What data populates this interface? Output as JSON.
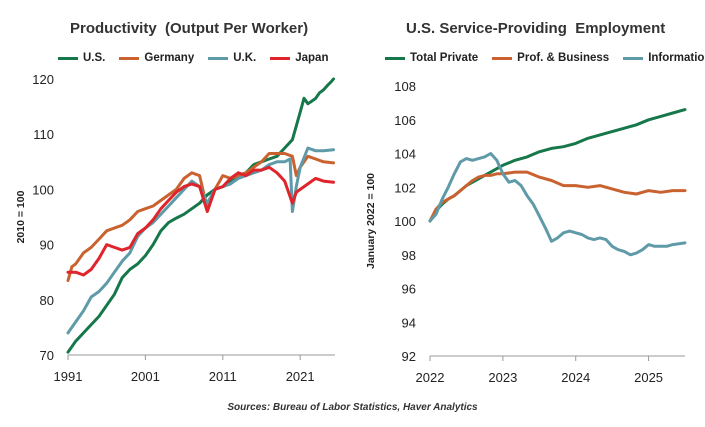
{
  "chart_data": [
    {
      "type": "line",
      "title": "Productivity  (Output Per Worker)",
      "ylabel": "2010 = 100",
      "xlabel": "",
      "ylim": [
        70,
        120
      ],
      "xlim": [
        1991,
        2025.5
      ],
      "yticks": [
        70,
        80,
        90,
        100,
        110,
        120
      ],
      "xticks": [
        1991,
        2001,
        2011,
        2021
      ],
      "grid": false,
      "legend_position": "top",
      "series": [
        {
          "name": "U.S.",
          "color": "#16784a",
          "x": [
            1991,
            1992,
            1993,
            1994,
            1995,
            1996,
            1997,
            1998,
            1999,
            2000,
            2001,
            2002,
            2003,
            2004,
            2005,
            2006,
            2007,
            2008,
            2009,
            2010,
            2011,
            2012,
            2013,
            2014,
            2015,
            2016,
            2017,
            2018,
            2019,
            2020,
            2020.5,
            2021,
            2021.5,
            2022,
            2022.5,
            2023,
            2023.5,
            2024,
            2024.5,
            2025,
            2025.3
          ],
          "y": [
            70.5,
            72.5,
            74,
            75.5,
            77,
            79,
            81,
            84,
            85.5,
            86.5,
            88,
            90,
            92.5,
            94,
            94.8,
            95.5,
            96.5,
            97.5,
            99,
            100,
            100.5,
            101.5,
            102.5,
            103,
            104.5,
            105,
            105.5,
            106,
            107.5,
            109,
            111.5,
            114,
            116.5,
            115.5,
            116,
            116.5,
            117.5,
            118,
            118.8,
            119.5,
            120
          ]
        },
        {
          "name": "Germany",
          "color": "#c9622f",
          "x": [
            1991,
            1991.5,
            1992,
            1993,
            1994,
            1995,
            1996,
            1997,
            1998,
            1999,
            2000,
            2001,
            2002,
            2003,
            2004,
            2005,
            2006,
            2007,
            2008,
            2009,
            2010,
            2011,
            2012,
            2013,
            2014,
            2015,
            2016,
            2017,
            2018,
            2019,
            2020,
            2020.5,
            2021,
            2022,
            2023,
            2024,
            2025.3
          ],
          "y": [
            83.5,
            86,
            86.5,
            88.5,
            89.5,
            91,
            92.5,
            93,
            93.5,
            94.5,
            96,
            96.5,
            97,
            98,
            99,
            100,
            102,
            103,
            102.5,
            96.5,
            100,
            102.5,
            102,
            102.5,
            103,
            104,
            105,
            106.5,
            106.5,
            106.5,
            106,
            102.5,
            104,
            106,
            105.5,
            105,
            104.8
          ]
        },
        {
          "name": "U.K.",
          "color": "#5f9aa8",
          "x": [
            1991,
            1992,
            1993,
            1994,
            1995,
            1996,
            1997,
            1998,
            1999,
            2000,
            2001,
            2002,
            2003,
            2004,
            2005,
            2006,
            2007,
            2008,
            2009,
            2010,
            2011,
            2012,
            2013,
            2014,
            2015,
            2016,
            2017,
            2018,
            2019,
            2019.7,
            2020,
            2020.5,
            2021,
            2022,
            2023,
            2024,
            2025.3
          ],
          "y": [
            74,
            76,
            78,
            80.5,
            81.5,
            83,
            85,
            87,
            88.5,
            91.5,
            93,
            94,
            95.5,
            97,
            98.5,
            100,
            101.5,
            100.5,
            97.5,
            100,
            100.5,
            101,
            102,
            102.5,
            103,
            103.5,
            104.5,
            105,
            105,
            105.5,
            96,
            100.5,
            104,
            107.5,
            107,
            107,
            107.2
          ]
        },
        {
          "name": "Japan",
          "color": "#e0242b",
          "x": [
            1991,
            1992,
            1993,
            1994,
            1995,
            1996,
            1997,
            1998,
            1999,
            2000,
            2001,
            2002,
            2003,
            2004,
            2005,
            2006,
            2007,
            2008,
            2009,
            2010,
            2011,
            2012,
            2013,
            2014,
            2015,
            2016,
            2017,
            2018,
            2019,
            2020,
            2020.5,
            2021,
            2022,
            2023,
            2024,
            2025.3
          ],
          "y": [
            85,
            85,
            84.5,
            85.5,
            87.5,
            90,
            89.5,
            89,
            89.5,
            92,
            93,
            94.5,
            96.5,
            98,
            99.5,
            100.5,
            101,
            100.5,
            96,
            100,
            100.5,
            102,
            103,
            102.5,
            103.5,
            103.5,
            104,
            103,
            101.5,
            97.5,
            99.5,
            100,
            101,
            102,
            101.5,
            101.3
          ]
        }
      ]
    },
    {
      "type": "line",
      "title": "U.S. Service-Providing  Employment",
      "ylabel": "January 2022 = 100",
      "xlabel": "",
      "ylim": [
        92,
        108
      ],
      "xlim": [
        2022,
        2025.5
      ],
      "yticks": [
        92,
        94,
        96,
        98,
        100,
        102,
        104,
        106,
        108
      ],
      "xticks": [
        2022,
        2023,
        2024,
        2025
      ],
      "grid": false,
      "legend_position": "top",
      "series": [
        {
          "name": "Total Private",
          "color": "#16784a",
          "x": [
            2022,
            2022.083,
            2022.167,
            2022.25,
            2022.333,
            2022.417,
            2022.5,
            2022.583,
            2022.667,
            2022.75,
            2022.833,
            2022.917,
            2023,
            2023.167,
            2023.333,
            2023.5,
            2023.667,
            2023.833,
            2024,
            2024.167,
            2024.333,
            2024.5,
            2024.667,
            2024.833,
            2025,
            2025.167,
            2025.333,
            2025.5
          ],
          "y": [
            100,
            100.6,
            101,
            101.3,
            101.5,
            101.8,
            102.1,
            102.3,
            102.5,
            102.7,
            102.9,
            103.1,
            103.3,
            103.6,
            103.8,
            104.1,
            104.3,
            104.4,
            104.6,
            104.9,
            105.1,
            105.3,
            105.5,
            105.7,
            106,
            106.2,
            106.4,
            106.6
          ]
        },
        {
          "name": "Prof. & Business",
          "color": "#c9622f",
          "x": [
            2022,
            2022.083,
            2022.167,
            2022.25,
            2022.333,
            2022.417,
            2022.5,
            2022.583,
            2022.667,
            2022.75,
            2022.833,
            2022.917,
            2023,
            2023.167,
            2023.333,
            2023.5,
            2023.667,
            2023.833,
            2024,
            2024.167,
            2024.333,
            2024.5,
            2024.667,
            2024.833,
            2025,
            2025.167,
            2025.333,
            2025.5
          ],
          "y": [
            100,
            100.7,
            101.1,
            101.3,
            101.5,
            101.8,
            102.1,
            102.4,
            102.6,
            102.7,
            102.7,
            102.8,
            102.8,
            102.9,
            102.9,
            102.6,
            102.4,
            102.1,
            102.1,
            102,
            102.1,
            101.9,
            101.7,
            101.6,
            101.8,
            101.7,
            101.8,
            101.8
          ]
        },
        {
          "name": "Information",
          "color": "#5f9aa8",
          "x": [
            2022,
            2022.083,
            2022.167,
            2022.25,
            2022.333,
            2022.417,
            2022.5,
            2022.583,
            2022.667,
            2022.75,
            2022.833,
            2022.917,
            2023,
            2023.083,
            2023.167,
            2023.25,
            2023.333,
            2023.417,
            2023.5,
            2023.583,
            2023.667,
            2023.75,
            2023.833,
            2023.917,
            2024,
            2024.083,
            2024.167,
            2024.25,
            2024.333,
            2024.417,
            2024.5,
            2024.583,
            2024.667,
            2024.75,
            2024.833,
            2024.917,
            2025,
            2025.083,
            2025.167,
            2025.25,
            2025.333,
            2025.5
          ],
          "y": [
            100,
            100.4,
            101.3,
            102,
            102.8,
            103.5,
            103.7,
            103.6,
            103.7,
            103.8,
            104,
            103.6,
            102.8,
            102.3,
            102.4,
            102.1,
            101.5,
            101,
            100.3,
            99.6,
            98.8,
            99,
            99.3,
            99.4,
            99.3,
            99.2,
            99,
            98.9,
            99,
            98.9,
            98.5,
            98.3,
            98.2,
            98,
            98.1,
            98.3,
            98.6,
            98.5,
            98.5,
            98.5,
            98.6,
            98.7
          ]
        }
      ]
    }
  ],
  "source": "Sources: Bureau of Labor Statistics, Haver Analytics"
}
